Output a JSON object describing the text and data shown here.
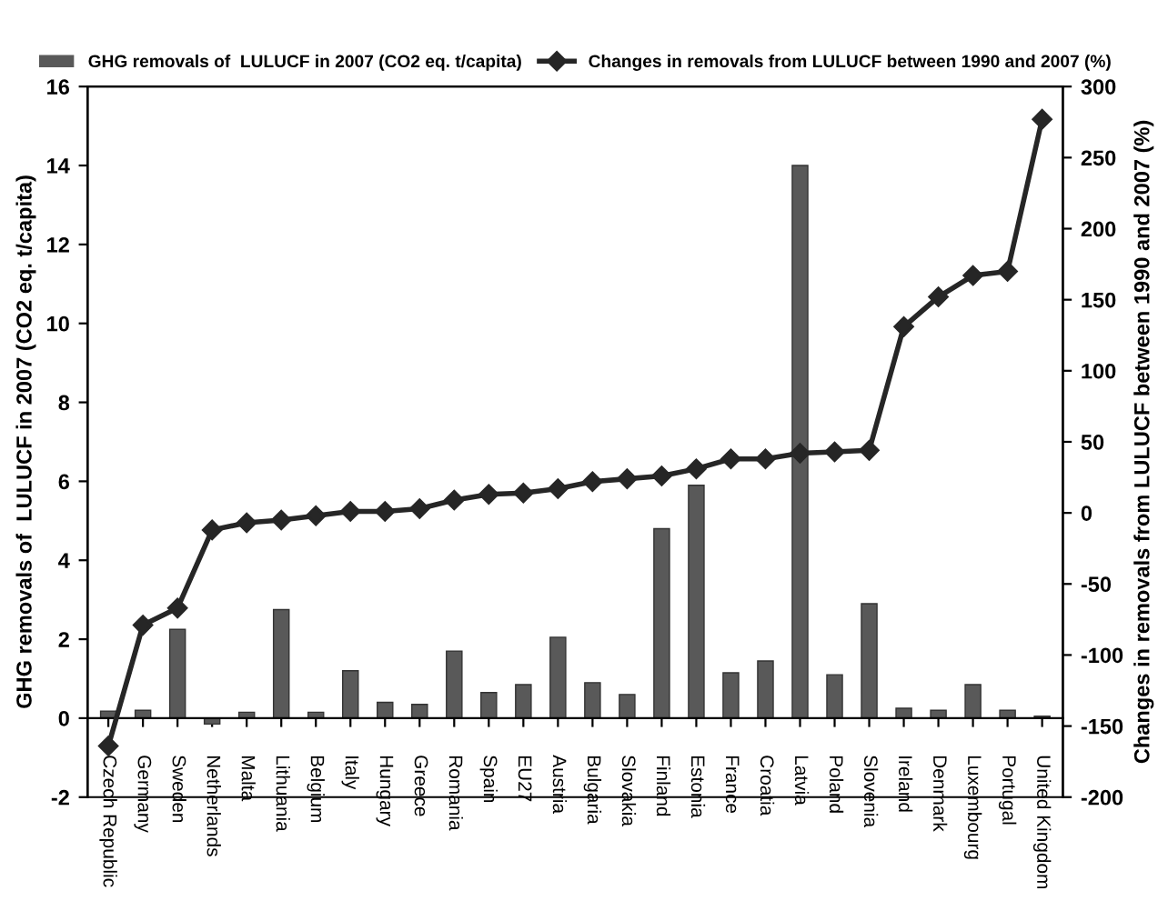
{
  "chart_data": {
    "type": "bar",
    "categories": [
      "Czech Republic",
      "Germany",
      "Sweden",
      "Netherlands",
      "Malta",
      "Lithuania",
      "Belgium",
      "Italy",
      "Hungary",
      "Greece",
      "Romania",
      "Spain",
      "EU27",
      "Austria",
      "Bulgaria",
      "Slovakia",
      "Finland",
      "Estonia",
      "France",
      "Croatia",
      "Latvia",
      "Poland",
      "Slovenia",
      "Ireland",
      "Denmark",
      "Luxembourg",
      "Portugal",
      "United Kingdom"
    ],
    "series": [
      {
        "name": "GHG removals of  LULUCF in 2007 (CO2 eq. t/capita)",
        "color": "#595959",
        "values": [
          0.18,
          0.2,
          2.25,
          -0.15,
          0.15,
          2.75,
          0.15,
          1.2,
          0.4,
          0.35,
          1.7,
          0.65,
          0.85,
          2.05,
          0.9,
          0.6,
          4.8,
          5.9,
          1.15,
          1.45,
          14.0,
          1.1,
          2.9,
          0.25,
          0.2,
          0.85,
          0.2,
          0.05
        ]
      },
      {
        "name": "Changes in removals from LULUCF between 1990 and 2007 (%)",
        "type": "line",
        "axis": "y2",
        "color": "#262626",
        "marker": "diamond",
        "values": [
          -164,
          -79,
          -67,
          -12,
          -7,
          -5,
          -2,
          1,
          1,
          3,
          9,
          13,
          14,
          17,
          22,
          24,
          26,
          31,
          38,
          38,
          42,
          43,
          44,
          131,
          152,
          167,
          170,
          277
        ]
      }
    ],
    "ylabel": "GHG removals of  LULUCF in 2007 (CO2 eq. t/capita)",
    "y2label": "Changes in removals from LULUCF between 1990 and 2007 (%)",
    "ylim": [
      -2,
      16
    ],
    "yticks": [
      -2,
      0,
      2,
      4,
      6,
      8,
      10,
      12,
      14,
      16
    ],
    "y2lim": [
      -200,
      300
    ],
    "y2ticks": [
      -200,
      -150,
      -100,
      -50,
      0,
      50,
      100,
      150,
      200,
      250,
      300
    ],
    "legend": "top"
  }
}
